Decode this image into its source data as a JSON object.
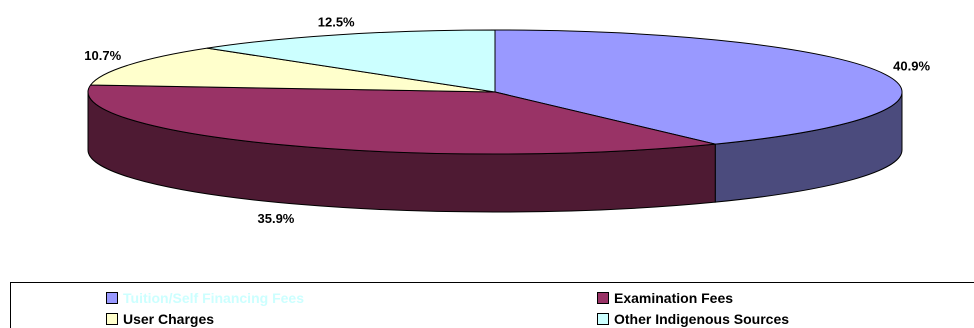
{
  "chart_data": {
    "type": "pie",
    "style": "3d",
    "title": "",
    "slices": [
      {
        "name": "Tuition/Self Financing Fees",
        "value": 40.9,
        "label": "40.9%",
        "color": "#9999ff",
        "side_color": "#4b4b7d",
        "legend_text_color": "#ccffff"
      },
      {
        "name": "Examination Fees",
        "value": 35.9,
        "label": "35.9%",
        "color": "#993366",
        "side_color": "#4e1a33",
        "legend_text_color": "#000000"
      },
      {
        "name": "User Charges",
        "value": 10.7,
        "label": "10.7%",
        "color": "#ffffcc",
        "side_color": "#8a8a6e",
        "legend_text_color": "#000000"
      },
      {
        "name": "Other Indigenous Sources",
        "value": 12.5,
        "label": "12.5%",
        "color": "#ccffff",
        "side_color": "#6e8a8a",
        "legend_text_color": "#000000"
      }
    ],
    "legend_placement": "bottom"
  }
}
